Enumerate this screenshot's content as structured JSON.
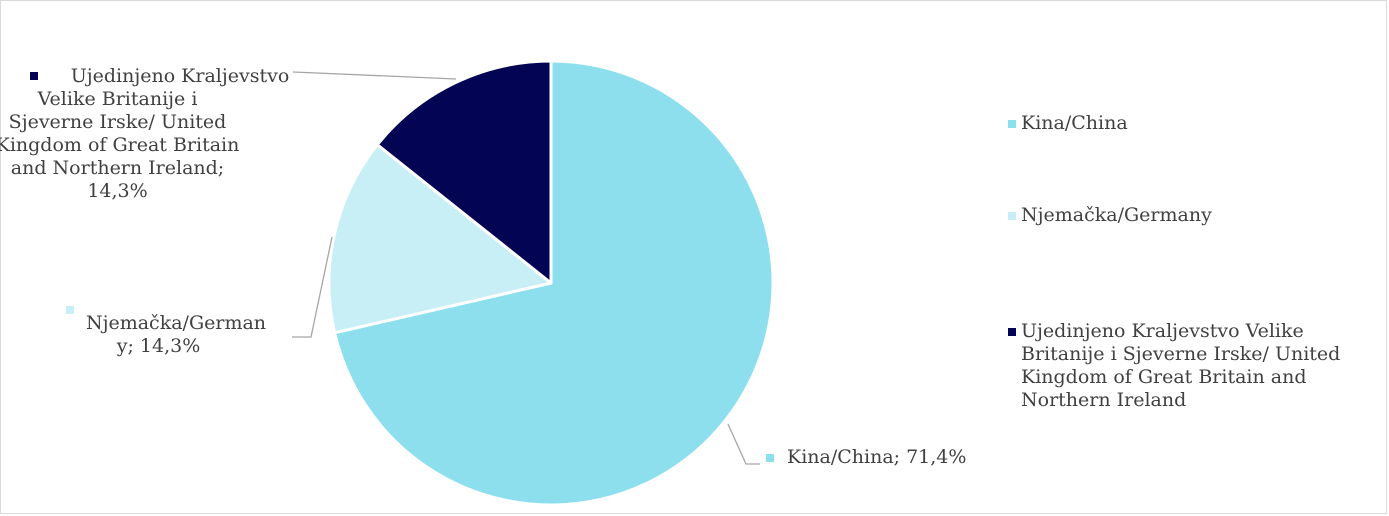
{
  "chart_data": {
    "type": "pie",
    "title": "",
    "slices": [
      {
        "name": "Kina/China",
        "value": 71.4,
        "label": "Kina/China; 71,4%",
        "color": "#8ddfee"
      },
      {
        "name": "Njemačka/Germany",
        "value": 14.3,
        "label_lines": [
          "Njemačka/German",
          "y; 14,3%"
        ],
        "color": "#c8eef6"
      },
      {
        "name": "Ujedinjeno Kraljevstvo Velike Britanije i Sjeverne Irske/ United Kingdom of Great Britain and Northern Ireland",
        "value": 14.3,
        "label_lines": [
          "Ujedinjeno Kraljevstvo",
          "Velike Britanije i",
          "Sjeverne Irske/ United",
          "Kingdom of Great Britain",
          "and Northern Ireland;",
          "14,3%"
        ],
        "color": "#040454"
      }
    ],
    "legend": {
      "position": "right",
      "entries": [
        {
          "lines": [
            "Kina/China"
          ],
          "color": "#8ddfee"
        },
        {
          "lines": [
            "Njemačka/Germany"
          ],
          "color": "#c8eef6"
        },
        {
          "lines": [
            "Ujedinjeno Kraljevstvo Velike",
            "Britanije i Sjeverne Irske/ United",
            "Kingdom of Great Britain and",
            "Northern Ireland"
          ],
          "color": "#040454"
        }
      ]
    }
  }
}
